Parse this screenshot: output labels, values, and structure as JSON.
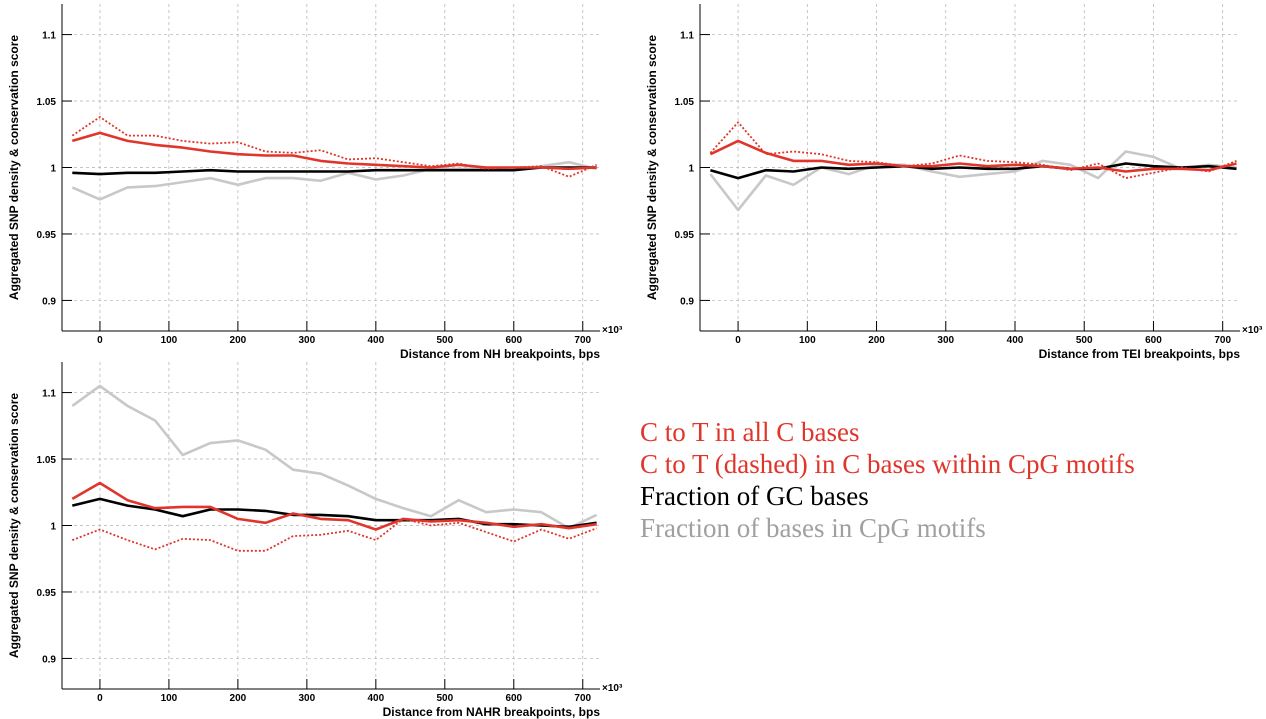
{
  "chart_data": [
    {
      "type": "line",
      "y_label": "Aggregated SNP density & conservation score",
      "x_label": "Distance from NH breakpoints, bps",
      "x_multiplier": "×10³",
      "x": [
        -40,
        0,
        40,
        80,
        120,
        160,
        200,
        240,
        280,
        320,
        360,
        400,
        440,
        480,
        520,
        560,
        600,
        640,
        680,
        720
      ],
      "xlim": [
        -55,
        725
      ],
      "xticks": [
        0,
        100,
        200,
        300,
        400,
        500,
        600,
        700
      ],
      "ylim": [
        0.877,
        1.123
      ],
      "yticks": [
        0.9,
        0.95,
        1,
        1.05,
        1.1
      ],
      "grid": true,
      "series": [
        {
          "color": "#c8c8c8",
          "dashed": false,
          "values": [
            0.985,
            0.976,
            0.985,
            0.986,
            0.989,
            0.992,
            0.987,
            0.992,
            0.992,
            0.99,
            0.996,
            0.991,
            0.994,
            0.999,
            0.999,
            0.999,
            0.998,
            1.001,
            1.004,
            0.999
          ]
        },
        {
          "color": "#000000",
          "dashed": false,
          "values": [
            0.996,
            0.995,
            0.996,
            0.996,
            0.997,
            0.998,
            0.997,
            0.997,
            0.997,
            0.997,
            0.997,
            0.998,
            0.998,
            0.998,
            0.998,
            0.998,
            0.998,
            1.0,
            1.0,
            1.0
          ]
        },
        {
          "color": "#e0352b",
          "dashed": true,
          "values": [
            1.024,
            1.038,
            1.024,
            1.024,
            1.02,
            1.018,
            1.019,
            1.012,
            1.011,
            1.013,
            1.006,
            1.007,
            1.004,
            1.001,
            1.003,
            0.999,
            1.0,
            1.001,
            0.993,
            1.002
          ]
        },
        {
          "color": "#e0352b",
          "dashed": false,
          "values": [
            1.02,
            1.026,
            1.02,
            1.017,
            1.015,
            1.012,
            1.01,
            1.009,
            1.009,
            1.005,
            1.003,
            1.002,
            1.001,
            1.0,
            1.002,
            1.0,
            1.0,
            1.0,
            0.999,
            1.0
          ]
        }
      ]
    },
    {
      "type": "line",
      "y_label": "Aggregated SNP density & conservation score",
      "x_label": "Distance from TEI breakpoints, bps",
      "x_multiplier": "×10³",
      "x": [
        -40,
        0,
        40,
        80,
        120,
        160,
        200,
        240,
        280,
        320,
        360,
        400,
        440,
        480,
        520,
        560,
        600,
        640,
        680,
        720
      ],
      "xlim": [
        -55,
        725
      ],
      "xticks": [
        0,
        100,
        200,
        300,
        400,
        500,
        600,
        700
      ],
      "ylim": [
        0.877,
        1.123
      ],
      "yticks": [
        0.9,
        0.95,
        1,
        1.05,
        1.1
      ],
      "grid": true,
      "series": [
        {
          "color": "#c8c8c8",
          "dashed": false,
          "values": [
            0.995,
            0.968,
            0.994,
            0.987,
            1.0,
            0.995,
            1.002,
            1.002,
            0.997,
            0.993,
            0.995,
            0.997,
            1.005,
            1.002,
            0.992,
            1.012,
            1.008,
            0.999,
            1.002,
            1.0
          ]
        },
        {
          "color": "#000000",
          "dashed": false,
          "values": [
            0.998,
            0.992,
            0.998,
            0.997,
            1.0,
            0.999,
            1.0,
            1.001,
            0.999,
            1.0,
            0.999,
            0.999,
            1.001,
            0.999,
            0.999,
            1.003,
            1.001,
            1.0,
            1.001,
            0.999
          ]
        },
        {
          "color": "#e0352b",
          "dashed": true,
          "values": [
            1.011,
            1.034,
            1.01,
            1.012,
            1.01,
            1.005,
            1.004,
            1.001,
            1.003,
            1.009,
            1.005,
            1.004,
            1.002,
            0.998,
            1.003,
            0.992,
            0.996,
            1.0,
            0.997,
            1.005
          ]
        },
        {
          "color": "#e0352b",
          "dashed": false,
          "values": [
            1.01,
            1.02,
            1.011,
            1.005,
            1.005,
            1.002,
            1.003,
            1.001,
            1.001,
            1.003,
            1.001,
            1.002,
            1.001,
            0.999,
            1.0,
            0.997,
            0.999,
            0.999,
            0.998,
            1.003
          ]
        }
      ]
    },
    {
      "type": "line",
      "y_label": "Aggregated SNP density & conservation score",
      "x_label": "Distance from NAHR breakpoints, bps",
      "x_multiplier": "×10³",
      "x": [
        -40,
        0,
        40,
        80,
        120,
        160,
        200,
        240,
        280,
        320,
        360,
        400,
        440,
        480,
        520,
        560,
        600,
        640,
        680,
        720
      ],
      "xlim": [
        -55,
        725
      ],
      "xticks": [
        0,
        100,
        200,
        300,
        400,
        500,
        600,
        700
      ],
      "ylim": [
        0.877,
        1.123
      ],
      "yticks": [
        0.9,
        0.95,
        1,
        1.05,
        1.1
      ],
      "grid": true,
      "series": [
        {
          "color": "#c8c8c8",
          "dashed": false,
          "values": [
            1.09,
            1.105,
            1.09,
            1.079,
            1.053,
            1.062,
            1.064,
            1.057,
            1.042,
            1.039,
            1.03,
            1.02,
            1.013,
            1.007,
            1.019,
            1.01,
            1.012,
            1.01,
            0.998,
            1.008
          ]
        },
        {
          "color": "#000000",
          "dashed": false,
          "values": [
            1.015,
            1.02,
            1.015,
            1.012,
            1.007,
            1.012,
            1.012,
            1.011,
            1.008,
            1.008,
            1.007,
            1.004,
            1.004,
            1.004,
            1.005,
            1.001,
            1.001,
            1.0,
            0.999,
            1.002
          ]
        },
        {
          "color": "#e0352b",
          "dashed": true,
          "values": [
            0.989,
            0.997,
            0.989,
            0.982,
            0.99,
            0.989,
            0.981,
            0.981,
            0.992,
            0.993,
            0.996,
            0.989,
            1.005,
            1.0,
            1.002,
            0.995,
            0.988,
            0.997,
            0.99,
            0.998
          ]
        },
        {
          "color": "#e0352b",
          "dashed": false,
          "values": [
            1.02,
            1.032,
            1.019,
            1.013,
            1.014,
            1.014,
            1.005,
            1.002,
            1.009,
            1.005,
            1.004,
            0.997,
            1.005,
            1.003,
            1.004,
            1.002,
            0.999,
            1.001,
            0.998,
            1.001
          ]
        }
      ]
    }
  ],
  "legend": [
    {
      "text": "C to T in all C bases",
      "color": "#e0352b"
    },
    {
      "text": "C to T (dashed) in C bases within CpG motifs",
      "color": "#e0352b"
    },
    {
      "text": "Fraction of GC bases",
      "color": "#000000"
    },
    {
      "text": "Fraction of bases in CpG motifs",
      "color": "#a0a0a0"
    }
  ]
}
